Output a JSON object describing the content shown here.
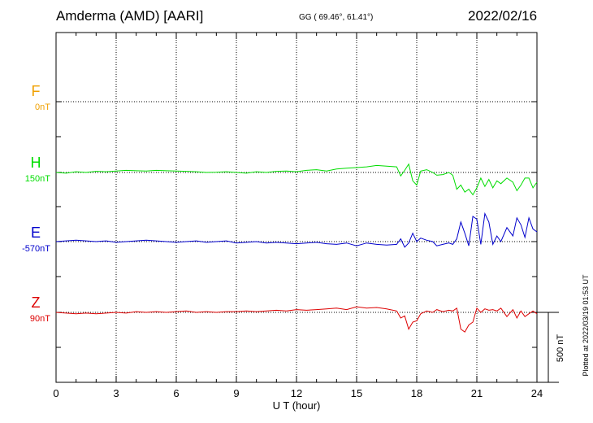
{
  "header": {
    "station": "Amderma (AMD)  [AARI]",
    "coords": "GG ( 69.46°,  61.41°)",
    "date": "2022/02/16"
  },
  "side_note": "Plotted at 2022/03/19 01:53 UT",
  "scale_label": "500 nT",
  "colors": {
    "F": "#f0a000",
    "H": "#00dd00",
    "E": "#0000cc",
    "Z": "#dd0000"
  },
  "chart_data": {
    "type": "line",
    "xlabel": "U T (hour)",
    "xlim": [
      0,
      24
    ],
    "xticks": [
      0,
      3,
      6,
      9,
      12,
      15,
      18,
      21,
      24
    ],
    "panel_scale_nT": 500,
    "series": [
      {
        "name": "F",
        "baseline_label": "0nT",
        "values": []
      },
      {
        "name": "H",
        "baseline_label": "150nT",
        "x": [
          0,
          0.5,
          1,
          1.5,
          2,
          2.5,
          3,
          3.5,
          4,
          4.5,
          5,
          5.5,
          6,
          6.5,
          7,
          7.5,
          8,
          8.5,
          9,
          9.5,
          10,
          10.5,
          11,
          11.5,
          12,
          12.5,
          13,
          13.5,
          14,
          14.5,
          15,
          15.5,
          16,
          16.5,
          17,
          17.2,
          17.4,
          17.6,
          17.8,
          18,
          18.2,
          18.5,
          18.8,
          19,
          19.3,
          19.6,
          19.8,
          20,
          20.2,
          20.4,
          20.6,
          20.8,
          21,
          21.2,
          21.4,
          21.6,
          21.8,
          22,
          22.2,
          22.5,
          22.8,
          23,
          23.2,
          23.4,
          23.6,
          23.8,
          24
        ],
        "values": [
          0,
          -5,
          5,
          0,
          8,
          5,
          10,
          15,
          12,
          10,
          15,
          12,
          10,
          8,
          5,
          0,
          2,
          5,
          0,
          -5,
          5,
          0,
          8,
          10,
          5,
          15,
          20,
          10,
          25,
          30,
          35,
          40,
          50,
          45,
          40,
          -25,
          15,
          60,
          -60,
          -90,
          10,
          20,
          0,
          -20,
          -15,
          0,
          -20,
          -120,
          -90,
          -140,
          -120,
          -160,
          -110,
          -40,
          -100,
          -50,
          -110,
          -60,
          -80,
          -40,
          -70,
          -130,
          -90,
          -40,
          -40,
          -110,
          -70
        ]
      },
      {
        "name": "E",
        "baseline_label": "-570nT",
        "x": [
          0,
          0.5,
          1,
          1.5,
          2,
          2.5,
          3,
          3.5,
          4,
          4.5,
          5,
          5.5,
          6,
          6.5,
          7,
          7.5,
          8,
          8.5,
          9,
          9.5,
          10,
          10.5,
          11,
          11.5,
          12,
          12.5,
          13,
          13.5,
          14,
          14.5,
          15,
          15.5,
          16,
          16.5,
          17,
          17.2,
          17.4,
          17.6,
          17.8,
          18,
          18.2,
          18.5,
          18.8,
          19,
          19.3,
          19.6,
          19.8,
          20,
          20.2,
          20.4,
          20.6,
          20.8,
          21,
          21.2,
          21.4,
          21.6,
          21.8,
          22,
          22.2,
          22.5,
          22.8,
          23,
          23.2,
          23.4,
          23.6,
          23.8,
          24
        ],
        "values": [
          0,
          5,
          10,
          5,
          0,
          5,
          -5,
          0,
          5,
          10,
          5,
          0,
          -5,
          0,
          5,
          -5,
          0,
          5,
          -10,
          -5,
          0,
          -10,
          -5,
          -10,
          -15,
          -10,
          -5,
          -15,
          -20,
          -10,
          -30,
          -10,
          -20,
          -25,
          -20,
          20,
          -40,
          -10,
          60,
          0,
          25,
          10,
          0,
          -30,
          -20,
          -10,
          -20,
          20,
          140,
          60,
          -30,
          180,
          160,
          -20,
          200,
          140,
          -20,
          40,
          0,
          100,
          40,
          170,
          120,
          30,
          170,
          90,
          70
        ]
      },
      {
        "name": "Z",
        "baseline_label": "90nT",
        "x": [
          0,
          0.5,
          1,
          1.5,
          2,
          2.5,
          3,
          3.5,
          4,
          4.5,
          5,
          5.5,
          6,
          6.5,
          7,
          7.5,
          8,
          8.5,
          9,
          9.5,
          10,
          10.5,
          11,
          11.5,
          12,
          12.5,
          13,
          13.5,
          14,
          14.5,
          15,
          15.5,
          16,
          16.5,
          17,
          17.2,
          17.4,
          17.6,
          17.8,
          18,
          18.2,
          18.5,
          18.8,
          19,
          19.3,
          19.6,
          19.8,
          20,
          20.2,
          20.4,
          20.6,
          20.8,
          21,
          21.2,
          21.4,
          21.6,
          21.8,
          22,
          22.2,
          22.5,
          22.8,
          23,
          23.2,
          23.4,
          23.6,
          23.8,
          24
        ],
        "values": [
          0,
          -5,
          -10,
          -5,
          -10,
          -5,
          0,
          -5,
          5,
          0,
          5,
          0,
          5,
          10,
          0,
          5,
          0,
          5,
          5,
          10,
          5,
          10,
          15,
          10,
          20,
          15,
          20,
          25,
          30,
          20,
          40,
          30,
          35,
          25,
          10,
          -40,
          -25,
          -120,
          -70,
          -60,
          -10,
          10,
          0,
          20,
          5,
          15,
          10,
          30,
          -120,
          -140,
          -90,
          -70,
          30,
          0,
          25,
          15,
          20,
          10,
          30,
          -30,
          20,
          -40,
          10,
          -30,
          -10,
          10,
          -10
        ]
      }
    ]
  }
}
